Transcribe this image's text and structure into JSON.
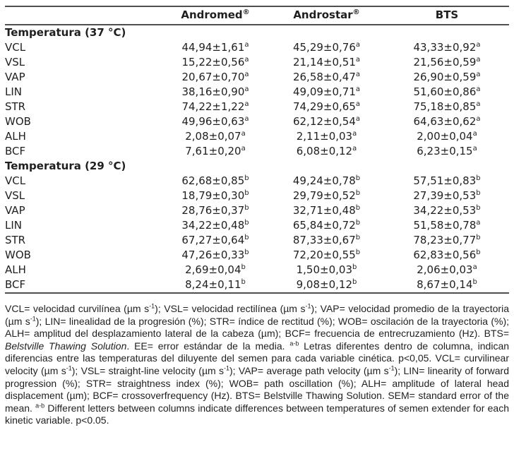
{
  "table": {
    "columns": [
      {
        "key": "variable",
        "label": "",
        "sup": ""
      },
      {
        "key": "andromed",
        "label": "Andromed",
        "sup": "®"
      },
      {
        "key": "androstar",
        "label": "Androstar",
        "sup": "®"
      },
      {
        "key": "bts",
        "label": "BTS",
        "sup": ""
      }
    ],
    "sections": [
      {
        "title": "Temperatura (37 °C)",
        "rows": [
          {
            "label": "VCL",
            "values": [
              {
                "v": "44,94±1,61",
                "sup": "a"
              },
              {
                "v": "45,29±0,76",
                "sup": "a"
              },
              {
                "v": "43,33±0,92",
                "sup": "a"
              }
            ]
          },
          {
            "label": "VSL",
            "values": [
              {
                "v": "15,22±0,56",
                "sup": "a"
              },
              {
                "v": "21,14±0,51",
                "sup": "a"
              },
              {
                "v": "21,56±0,59",
                "sup": "a"
              }
            ]
          },
          {
            "label": "VAP",
            "values": [
              {
                "v": "20,67±0,70",
                "sup": "a"
              },
              {
                "v": "26,58±0,47",
                "sup": "a"
              },
              {
                "v": "26,90±0,59",
                "sup": "a"
              }
            ]
          },
          {
            "label": "LIN",
            "values": [
              {
                "v": "38,16±0,90",
                "sup": "a"
              },
              {
                "v": "49,09±0,71",
                "sup": "a"
              },
              {
                "v": "51,60±0,86",
                "sup": "a"
              }
            ]
          },
          {
            "label": "STR",
            "values": [
              {
                "v": "74,22±1,22",
                "sup": "a"
              },
              {
                "v": "74,29±0,65",
                "sup": "a"
              },
              {
                "v": "75,18±0,85",
                "sup": "a"
              }
            ]
          },
          {
            "label": "WOB",
            "values": [
              {
                "v": "49,96±0,63",
                "sup": "a"
              },
              {
                "v": "62,12±0,54",
                "sup": "a"
              },
              {
                "v": "64,63±0,62",
                "sup": "a"
              }
            ]
          },
          {
            "label": "ALH",
            "values": [
              {
                "v": "2,08±0,07",
                "sup": "a"
              },
              {
                "v": "2,11±0,03",
                "sup": "a"
              },
              {
                "v": "2,00±0,04",
                "sup": "a"
              }
            ]
          },
          {
            "label": "BCF",
            "values": [
              {
                "v": "7,61±0,20",
                "sup": "a"
              },
              {
                "v": "6,08±0,12",
                "sup": "a"
              },
              {
                "v": "6,23±0,15",
                "sup": "a"
              }
            ]
          }
        ]
      },
      {
        "title": "Temperatura (29 °C)",
        "rows": [
          {
            "label": "VCL",
            "values": [
              {
                "v": "62,68±0,85",
                "sup": "b"
              },
              {
                "v": "49,24±0,78",
                "sup": "b"
              },
              {
                "v": "57,51±0,83",
                "sup": "b"
              }
            ]
          },
          {
            "label": "VSL",
            "values": [
              {
                "v": "18,79±0,30",
                "sup": "b"
              },
              {
                "v": "29,79±0,52",
                "sup": "b"
              },
              {
                "v": "27,39±0,53",
                "sup": "b"
              }
            ]
          },
          {
            "label": "VAP",
            "values": [
              {
                "v": "28,76±0,37",
                "sup": "b"
              },
              {
                "v": "32,71±0,48",
                "sup": "b"
              },
              {
                "v": "34,22±0,53",
                "sup": "b"
              }
            ]
          },
          {
            "label": "LIN",
            "values": [
              {
                "v": "34,22±0,48",
                "sup": "b"
              },
              {
                "v": "65,84±0,72",
                "sup": "b"
              },
              {
                "v": "51,58±0,78",
                "sup": "a"
              }
            ]
          },
          {
            "label": "STR",
            "values": [
              {
                "v": "67,27±0,64",
                "sup": "b"
              },
              {
                "v": "87,33±0,67",
                "sup": "b"
              },
              {
                "v": "78,23±0,77",
                "sup": "b"
              }
            ]
          },
          {
            "label": "WOB",
            "values": [
              {
                "v": "47,26±0,33",
                "sup": "b"
              },
              {
                "v": "72,20±0,55",
                "sup": "b"
              },
              {
                "v": "62,83±0,56",
                "sup": "b"
              }
            ]
          },
          {
            "label": "ALH",
            "values": [
              {
                "v": "2,69±0,04",
                "sup": "b"
              },
              {
                "v": "1,50±0,03",
                "sup": "b"
              },
              {
                "v": "2,06±0,03",
                "sup": "a"
              }
            ]
          },
          {
            "label": "BCF",
            "values": [
              {
                "v": "8,24±0,11",
                "sup": "b"
              },
              {
                "v": "9,08±0,12",
                "sup": "b"
              },
              {
                "v": "8,67±0,14",
                "sup": "b"
              }
            ]
          }
        ]
      }
    ]
  },
  "footnote": {
    "segments": [
      {
        "text": "VCL= velocidad curvilínea (µm s"
      },
      {
        "text": "-1",
        "sup": true
      },
      {
        "text": "); VSL= velocidad rectilínea (µm s"
      },
      {
        "text": "-1",
        "sup": true
      },
      {
        "text": "); VAP= velocidad promedio de la trayectoria (µm s"
      },
      {
        "text": "-1",
        "sup": true
      },
      {
        "text": "); LIN= linealidad de la progresión (%); STR= índice de rectitud (%); WOB= oscilación de la trayectoria (%); ALH= amplitud del desplazamiento lateral de la cabeza (µm); BCF= frecuencia de entrecruzamiento (Hz). BTS= "
      },
      {
        "text": "Belstville Thawing Solution",
        "italic": true
      },
      {
        "text": ". EE= error estándar de la media. "
      },
      {
        "text": "a-b",
        "sup": true
      },
      {
        "text": " Letras diferentes dentro de columna, indican diferencias entre las temperaturas del diluyente del semen para cada variable cinética. p<0,05. VCL= curvilinear velocity (µm s"
      },
      {
        "text": "-1",
        "sup": true
      },
      {
        "text": "); VSL= straight-line velocity (µm s"
      },
      {
        "text": "-1",
        "sup": true
      },
      {
        "text": "); VAP= average path velocity (µm s"
      },
      {
        "text": "-1",
        "sup": true
      },
      {
        "text": "); LIN= linearity of forward progression (%); STR= straightness index (%); WOB= path oscillation (%); ALH= amplitude of lateral head displacement (µm); BCF= crossoverfrequency (Hz). BTS= Belstville Thawing Solution. SEM= standard error of the mean. "
      },
      {
        "text": "a-b",
        "sup": true
      },
      {
        "text": " Different letters between columns indicate differences between temperatures of semen extender for each kinetic variable. p<0.05."
      }
    ]
  },
  "colors": {
    "rule": "#4f4f4f",
    "text": "#1f1f1f",
    "background": "#ffffff"
  }
}
